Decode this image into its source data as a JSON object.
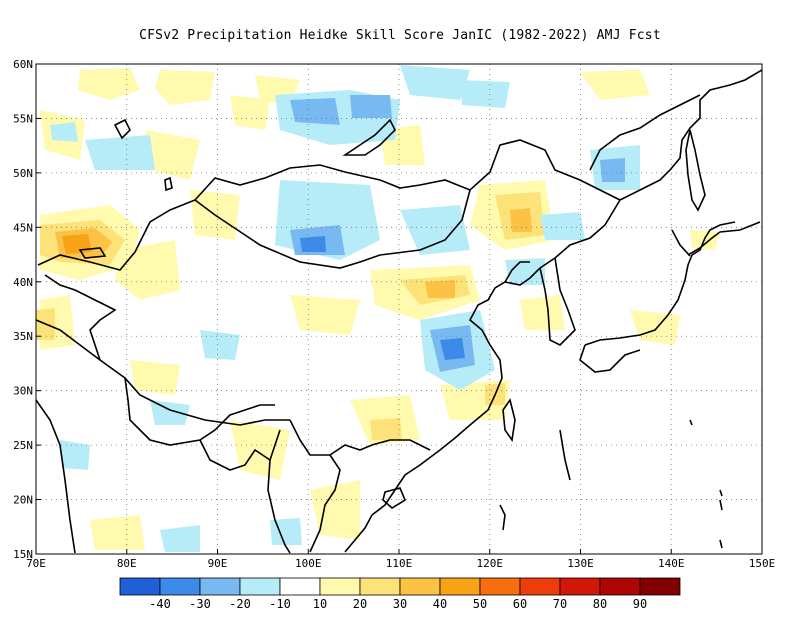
{
  "title": "CFSv2  Precipitation Heidke Skill Score JanIC (1982-2022) AMJ Fcst",
  "map": {
    "lon_range": [
      70,
      150
    ],
    "lat_range": [
      15,
      60
    ],
    "lon_ticks": [
      "70E",
      "80E",
      "90E",
      "100E",
      "110E",
      "120E",
      "130E",
      "140E",
      "150E"
    ],
    "lat_ticks": [
      "15N",
      "20N",
      "25N",
      "30N",
      "35N",
      "40N",
      "45N",
      "50N",
      "55N",
      "60N"
    ],
    "grid": "dotted"
  },
  "colorbar": {
    "colors": [
      "#1f5fd8",
      "#3c8be8",
      "#79b9f2",
      "#b6ecf7",
      "#ffffff",
      "#fffaae",
      "#fde27a",
      "#fbc245",
      "#f8a216",
      "#f66e0e",
      "#ee3c0a",
      "#d11808",
      "#ae0505",
      "#820000"
    ],
    "labels": [
      "-40",
      "-30",
      "-20",
      "-10",
      "10",
      "20",
      "30",
      "40",
      "50",
      "60",
      "70",
      "80",
      "90"
    ]
  }
}
